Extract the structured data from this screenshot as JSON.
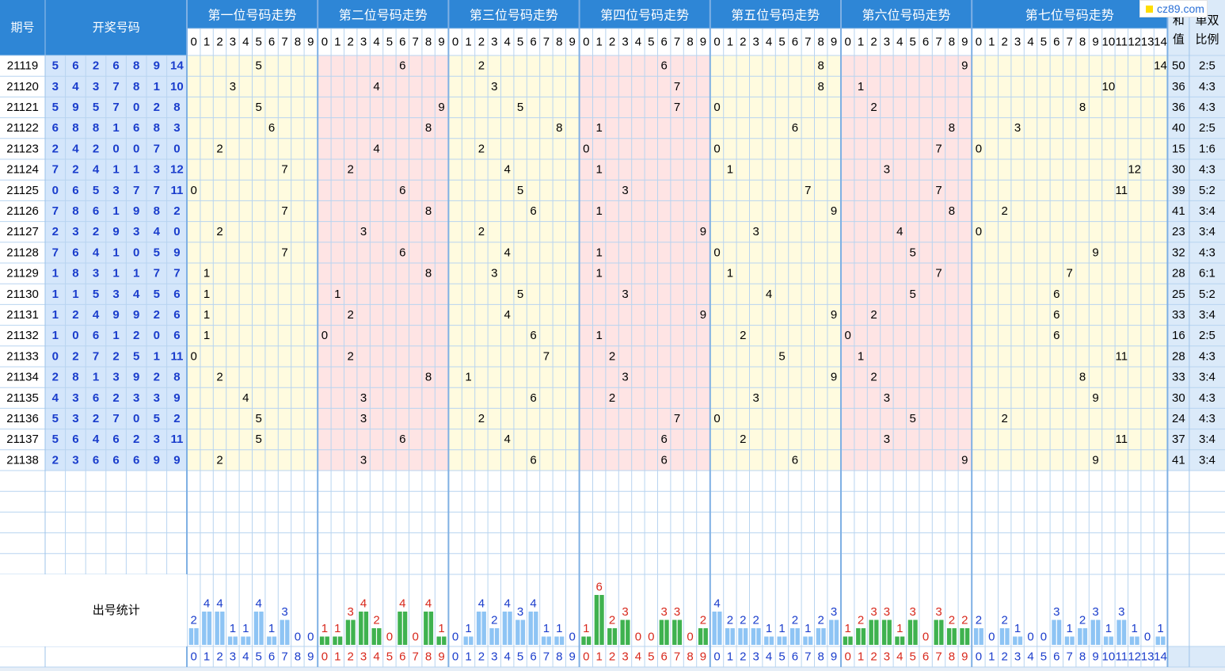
{
  "header": {
    "period_label": "期号",
    "numbers_label": "开奖号码",
    "sum_label": "和值",
    "ratio_label": "单双比例",
    "stats_label": "出号统计"
  },
  "watermark": {
    "text": "cz89.com",
    "color": "#ffdd00"
  },
  "colors": {
    "header_bg": "#2e86d6",
    "number_cell_bg": "#d4e6fb",
    "yellow_zone": "#fffbdf",
    "pink_zone": "#fee4e4",
    "blue_bar": "#8ec4f4",
    "green_bar": "#3fb24f",
    "blue_text": "#1a3dcc",
    "red_text": "#d8281c",
    "grid_line": "#b8d4f0"
  },
  "chart_data": {
    "type": "table",
    "positions": [
      {
        "title": "第一位号码走势",
        "range": [
          0,
          1,
          2,
          3,
          4,
          5,
          6,
          7,
          8,
          9
        ],
        "zone": "yellow"
      },
      {
        "title": "第二位号码走势",
        "range": [
          0,
          1,
          2,
          3,
          4,
          5,
          6,
          7,
          8,
          9
        ],
        "zone": "pink"
      },
      {
        "title": "第三位号码走势",
        "range": [
          0,
          1,
          2,
          3,
          4,
          5,
          6,
          7,
          8,
          9
        ],
        "zone": "yellow"
      },
      {
        "title": "第四位号码走势",
        "range": [
          0,
          1,
          2,
          3,
          4,
          5,
          6,
          7,
          8,
          9
        ],
        "zone": "pink"
      },
      {
        "title": "第五位号码走势",
        "range": [
          0,
          1,
          2,
          3,
          4,
          5,
          6,
          7,
          8,
          9
        ],
        "zone": "yellow"
      },
      {
        "title": "第六位号码走势",
        "range": [
          0,
          1,
          2,
          3,
          4,
          5,
          6,
          7,
          8,
          9
        ],
        "zone": "pink"
      },
      {
        "title": "第七位号码走势",
        "range": [
          0,
          1,
          2,
          3,
          4,
          5,
          6,
          7,
          8,
          9,
          10,
          11,
          12,
          13,
          14
        ],
        "zone": "yellow"
      }
    ],
    "draws": [
      {
        "period": "21119",
        "numbers": [
          5,
          6,
          2,
          6,
          8,
          9,
          14
        ],
        "sum": 50,
        "ratio": "2:5"
      },
      {
        "period": "21120",
        "numbers": [
          3,
          4,
          3,
          7,
          8,
          1,
          10
        ],
        "sum": 36,
        "ratio": "4:3"
      },
      {
        "period": "21121",
        "numbers": [
          5,
          9,
          5,
          7,
          0,
          2,
          8
        ],
        "sum": 36,
        "ratio": "4:3"
      },
      {
        "period": "21122",
        "numbers": [
          6,
          8,
          8,
          1,
          6,
          8,
          3
        ],
        "sum": 40,
        "ratio": "2:5"
      },
      {
        "period": "21123",
        "numbers": [
          2,
          4,
          2,
          0,
          0,
          7,
          0
        ],
        "sum": 15,
        "ratio": "1:6"
      },
      {
        "period": "21124",
        "numbers": [
          7,
          2,
          4,
          1,
          1,
          3,
          12
        ],
        "sum": 30,
        "ratio": "4:3"
      },
      {
        "period": "21125",
        "numbers": [
          0,
          6,
          5,
          3,
          7,
          7,
          11
        ],
        "sum": 39,
        "ratio": "5:2"
      },
      {
        "period": "21126",
        "numbers": [
          7,
          8,
          6,
          1,
          9,
          8,
          2
        ],
        "sum": 41,
        "ratio": "3:4"
      },
      {
        "period": "21127",
        "numbers": [
          2,
          3,
          2,
          9,
          3,
          4,
          0
        ],
        "sum": 23,
        "ratio": "3:4"
      },
      {
        "period": "21128",
        "numbers": [
          7,
          6,
          4,
          1,
          0,
          5,
          9
        ],
        "sum": 32,
        "ratio": "4:3"
      },
      {
        "period": "21129",
        "numbers": [
          1,
          8,
          3,
          1,
          1,
          7,
          7
        ],
        "sum": 28,
        "ratio": "6:1"
      },
      {
        "period": "21130",
        "numbers": [
          1,
          1,
          5,
          3,
          4,
          5,
          6
        ],
        "sum": 25,
        "ratio": "5:2"
      },
      {
        "period": "21131",
        "numbers": [
          1,
          2,
          4,
          9,
          9,
          2,
          6
        ],
        "sum": 33,
        "ratio": "3:4"
      },
      {
        "period": "21132",
        "numbers": [
          1,
          0,
          6,
          1,
          2,
          0,
          6
        ],
        "sum": 16,
        "ratio": "2:5"
      },
      {
        "period": "21133",
        "numbers": [
          0,
          2,
          7,
          2,
          5,
          1,
          11
        ],
        "sum": 28,
        "ratio": "4:3"
      },
      {
        "period": "21134",
        "numbers": [
          2,
          8,
          1,
          3,
          9,
          2,
          8
        ],
        "sum": 33,
        "ratio": "3:4"
      },
      {
        "period": "21135",
        "numbers": [
          4,
          3,
          6,
          2,
          3,
          3,
          9
        ],
        "sum": 30,
        "ratio": "4:3"
      },
      {
        "period": "21136",
        "numbers": [
          5,
          3,
          2,
          7,
          0,
          5,
          2
        ],
        "sum": 24,
        "ratio": "4:3"
      },
      {
        "period": "21137",
        "numbers": [
          5,
          6,
          4,
          6,
          2,
          3,
          11
        ],
        "sum": 37,
        "ratio": "3:4"
      },
      {
        "period": "21138",
        "numbers": [
          2,
          3,
          6,
          6,
          6,
          9,
          9
        ],
        "sum": 41,
        "ratio": "3:4"
      }
    ],
    "stats": [
      [
        2,
        4,
        4,
        1,
        1,
        4,
        1,
        3,
        0,
        0
      ],
      [
        1,
        1,
        3,
        4,
        2,
        0,
        4,
        0,
        4,
        1
      ],
      [
        0,
        1,
        4,
        2,
        4,
        3,
        4,
        1,
        1,
        0
      ],
      [
        1,
        6,
        2,
        3,
        0,
        0,
        3,
        3,
        0,
        2
      ],
      [
        4,
        2,
        2,
        2,
        1,
        1,
        2,
        1,
        2,
        3
      ],
      [
        1,
        2,
        3,
        3,
        1,
        3,
        0,
        3,
        2,
        2
      ],
      [
        2,
        0,
        2,
        1,
        0,
        0,
        3,
        1,
        2,
        3,
        1,
        3,
        1,
        0,
        1
      ]
    ]
  }
}
